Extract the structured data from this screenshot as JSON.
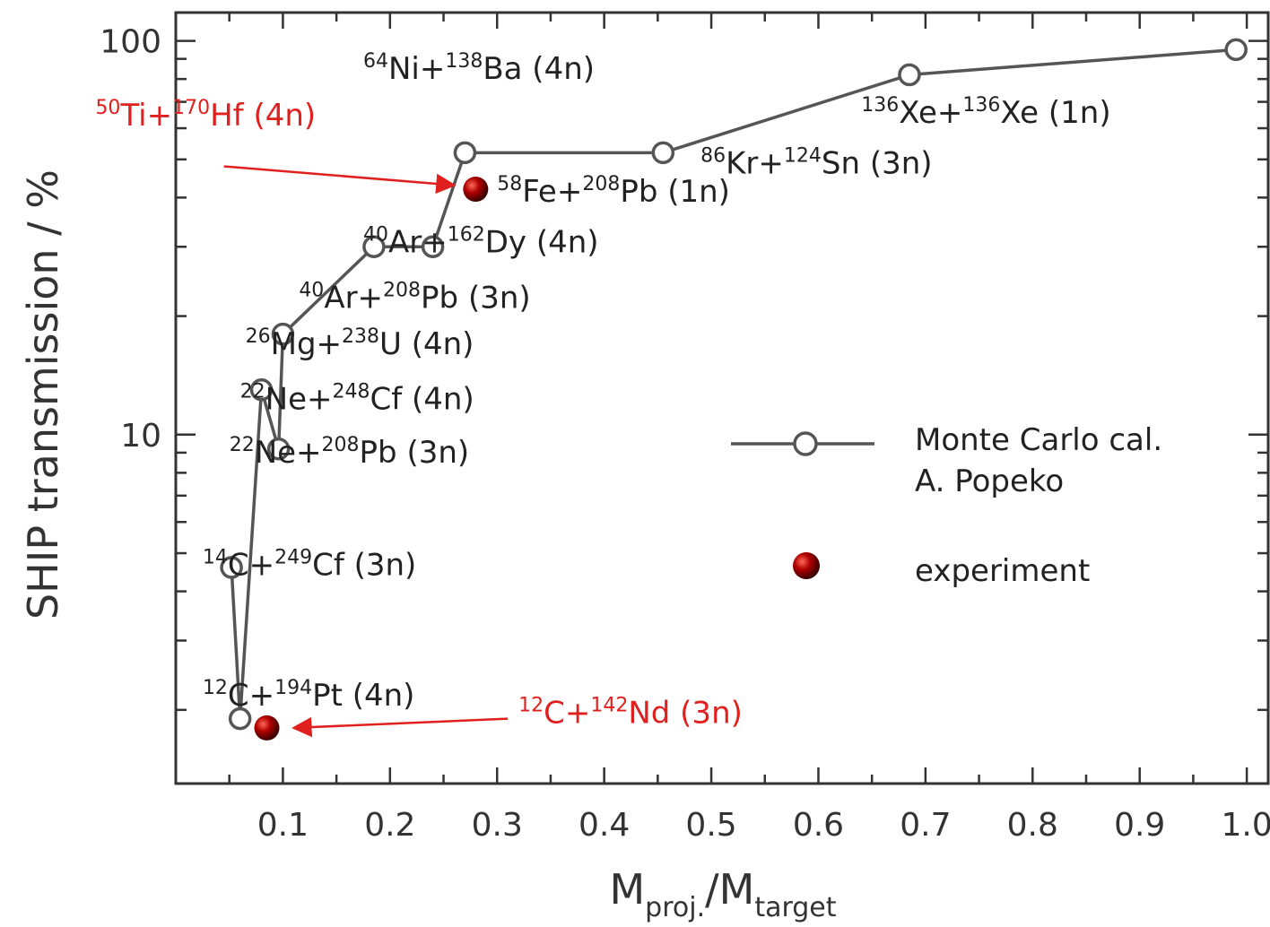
{
  "chart_data": {
    "type": "scatter",
    "title": "",
    "xlabel": {
      "main": "M",
      "sub1": "proj.",
      "sep": "/M",
      "sub2": "target"
    },
    "ylabel": "SHIP  transmission  /  %",
    "y_scale": "log",
    "xlim": [
      0,
      1.02
    ],
    "ylim": [
      1.3,
      118
    ],
    "x_ticks": [
      {
        "value": 0.1,
        "label": "0.1"
      },
      {
        "value": 0.2,
        "label": "0.2"
      },
      {
        "value": 0.3,
        "label": "0.3"
      },
      {
        "value": 0.4,
        "label": "0.4"
      },
      {
        "value": 0.5,
        "label": "0.5"
      },
      {
        "value": 0.6,
        "label": "0.6"
      },
      {
        "value": 0.7,
        "label": "0.7"
      },
      {
        "value": 0.8,
        "label": "0.8"
      },
      {
        "value": 0.9,
        "label": "0.9"
      },
      {
        "value": 1.0,
        "label": "1.0"
      }
    ],
    "y_ticks": [
      {
        "value": 10,
        "label": "10"
      },
      {
        "value": 100,
        "label": "100"
      }
    ],
    "series": [
      {
        "name": "Monte Carlo cal. A. Popeko",
        "style": "line-open-circle",
        "points": [
          {
            "x": 0.052,
            "y": 4.6
          },
          {
            "x": 0.06,
            "y": 1.9
          },
          {
            "x": 0.08,
            "y": 13
          },
          {
            "x": 0.096,
            "y": 9.2
          },
          {
            "x": 0.1,
            "y": 18
          },
          {
            "x": 0.185,
            "y": 30
          },
          {
            "x": 0.24,
            "y": 30
          },
          {
            "x": 0.27,
            "y": 52
          },
          {
            "x": 0.455,
            "y": 52
          },
          {
            "x": 0.685,
            "y": 82
          },
          {
            "x": 0.99,
            "y": 95
          }
        ]
      },
      {
        "name": "experiment",
        "style": "filled-dark-red",
        "points": [
          {
            "x": 0.085,
            "y": 1.8
          },
          {
            "x": 0.28,
            "y": 42
          }
        ]
      }
    ],
    "annotations": [
      {
        "text": [
          {
            "sup": "64"
          },
          {
            "t": "Ni+"
          },
          {
            "sup": "138"
          },
          {
            "t": "Ba (4n)"
          }
        ],
        "color": "black",
        "x": 0.175,
        "y": 80
      },
      {
        "text": [
          {
            "sup": "136"
          },
          {
            "t": "Xe+"
          },
          {
            "sup": "136"
          },
          {
            "t": "Xe (1n)"
          }
        ],
        "color": "black",
        "x": 0.64,
        "y": 62
      },
      {
        "text": [
          {
            "sup": "86"
          },
          {
            "t": "Kr+"
          },
          {
            "sup": "124"
          },
          {
            "t": "Sn (3n)"
          }
        ],
        "color": "black",
        "x": 0.49,
        "y": 46
      },
      {
        "text": [
          {
            "sup": "58"
          },
          {
            "t": "Fe+"
          },
          {
            "sup": "208"
          },
          {
            "t": "Pb (1n)"
          }
        ],
        "color": "black",
        "x": 0.3,
        "y": 39
      },
      {
        "text": [
          {
            "sup": "40"
          },
          {
            "t": "Ar+"
          },
          {
            "sup": "162"
          },
          {
            "t": "Dy (4n)"
          }
        ],
        "color": "black",
        "x": 0.175,
        "y": 29
      },
      {
        "text": [
          {
            "sup": "40"
          },
          {
            "t": "Ar+"
          },
          {
            "sup": "208"
          },
          {
            "t": "Pb (3n)"
          }
        ],
        "color": "black",
        "x": 0.115,
        "y": 21
      },
      {
        "text": [
          {
            "sup": "26"
          },
          {
            "t": "Mg+"
          },
          {
            "sup": "238"
          },
          {
            "t": "U (4n)"
          }
        ],
        "color": "black",
        "x": 0.065,
        "y": 16
      },
      {
        "text": [
          {
            "sup": "22"
          },
          {
            "t": "Ne+"
          },
          {
            "sup": "248"
          },
          {
            "t": "Cf (4n)"
          }
        ],
        "color": "black",
        "x": 0.06,
        "y": 11.6
      },
      {
        "text": [
          {
            "sup": "22"
          },
          {
            "t": "Ne+"
          },
          {
            "sup": "208"
          },
          {
            "t": "Pb (3n)"
          }
        ],
        "color": "black",
        "x": 0.05,
        "y": 8.5
      },
      {
        "text": [
          {
            "sup": "14"
          },
          {
            "t": "C+"
          },
          {
            "sup": "249"
          },
          {
            "t": "Cf (3n)"
          }
        ],
        "color": "black",
        "x": 0.025,
        "y": 4.4
      },
      {
        "text": [
          {
            "sup": "12"
          },
          {
            "t": "C+"
          },
          {
            "sup": "194"
          },
          {
            "t": "Pt (4n)"
          }
        ],
        "color": "black",
        "x": 0.025,
        "y": 2.05
      },
      {
        "text": [
          {
            "sup": "50"
          },
          {
            "t": "Ti+"
          },
          {
            "sup": "170"
          },
          {
            "t": "Hf (4n)"
          }
        ],
        "color": "red",
        "x": -0.075,
        "y": 61
      },
      {
        "text": [
          {
            "sup": "12"
          },
          {
            "t": "C+"
          },
          {
            "sup": "142"
          },
          {
            "t": "Nd (3n)"
          }
        ],
        "color": "red",
        "x": 0.32,
        "y": 1.85
      }
    ],
    "arrows": [
      {
        "from": [
          0.045,
          48
        ],
        "to": [
          0.26,
          43
        ],
        "color": "red"
      },
      {
        "from": [
          0.31,
          1.9
        ],
        "to": [
          0.11,
          1.8
        ],
        "color": "red"
      }
    ],
    "legend": {
      "placement": "right-middle",
      "entries": [
        {
          "lines": [
            "Monte Carlo cal.",
            "A. Popeko"
          ],
          "style": "line-open-circle"
        },
        {
          "lines": [
            "experiment"
          ],
          "style": "filled-dark-red"
        }
      ]
    },
    "colors": {
      "axis": "#333333",
      "line": "#555555",
      "experiment": "#8b0000",
      "red_text": "#e0201e"
    }
  }
}
